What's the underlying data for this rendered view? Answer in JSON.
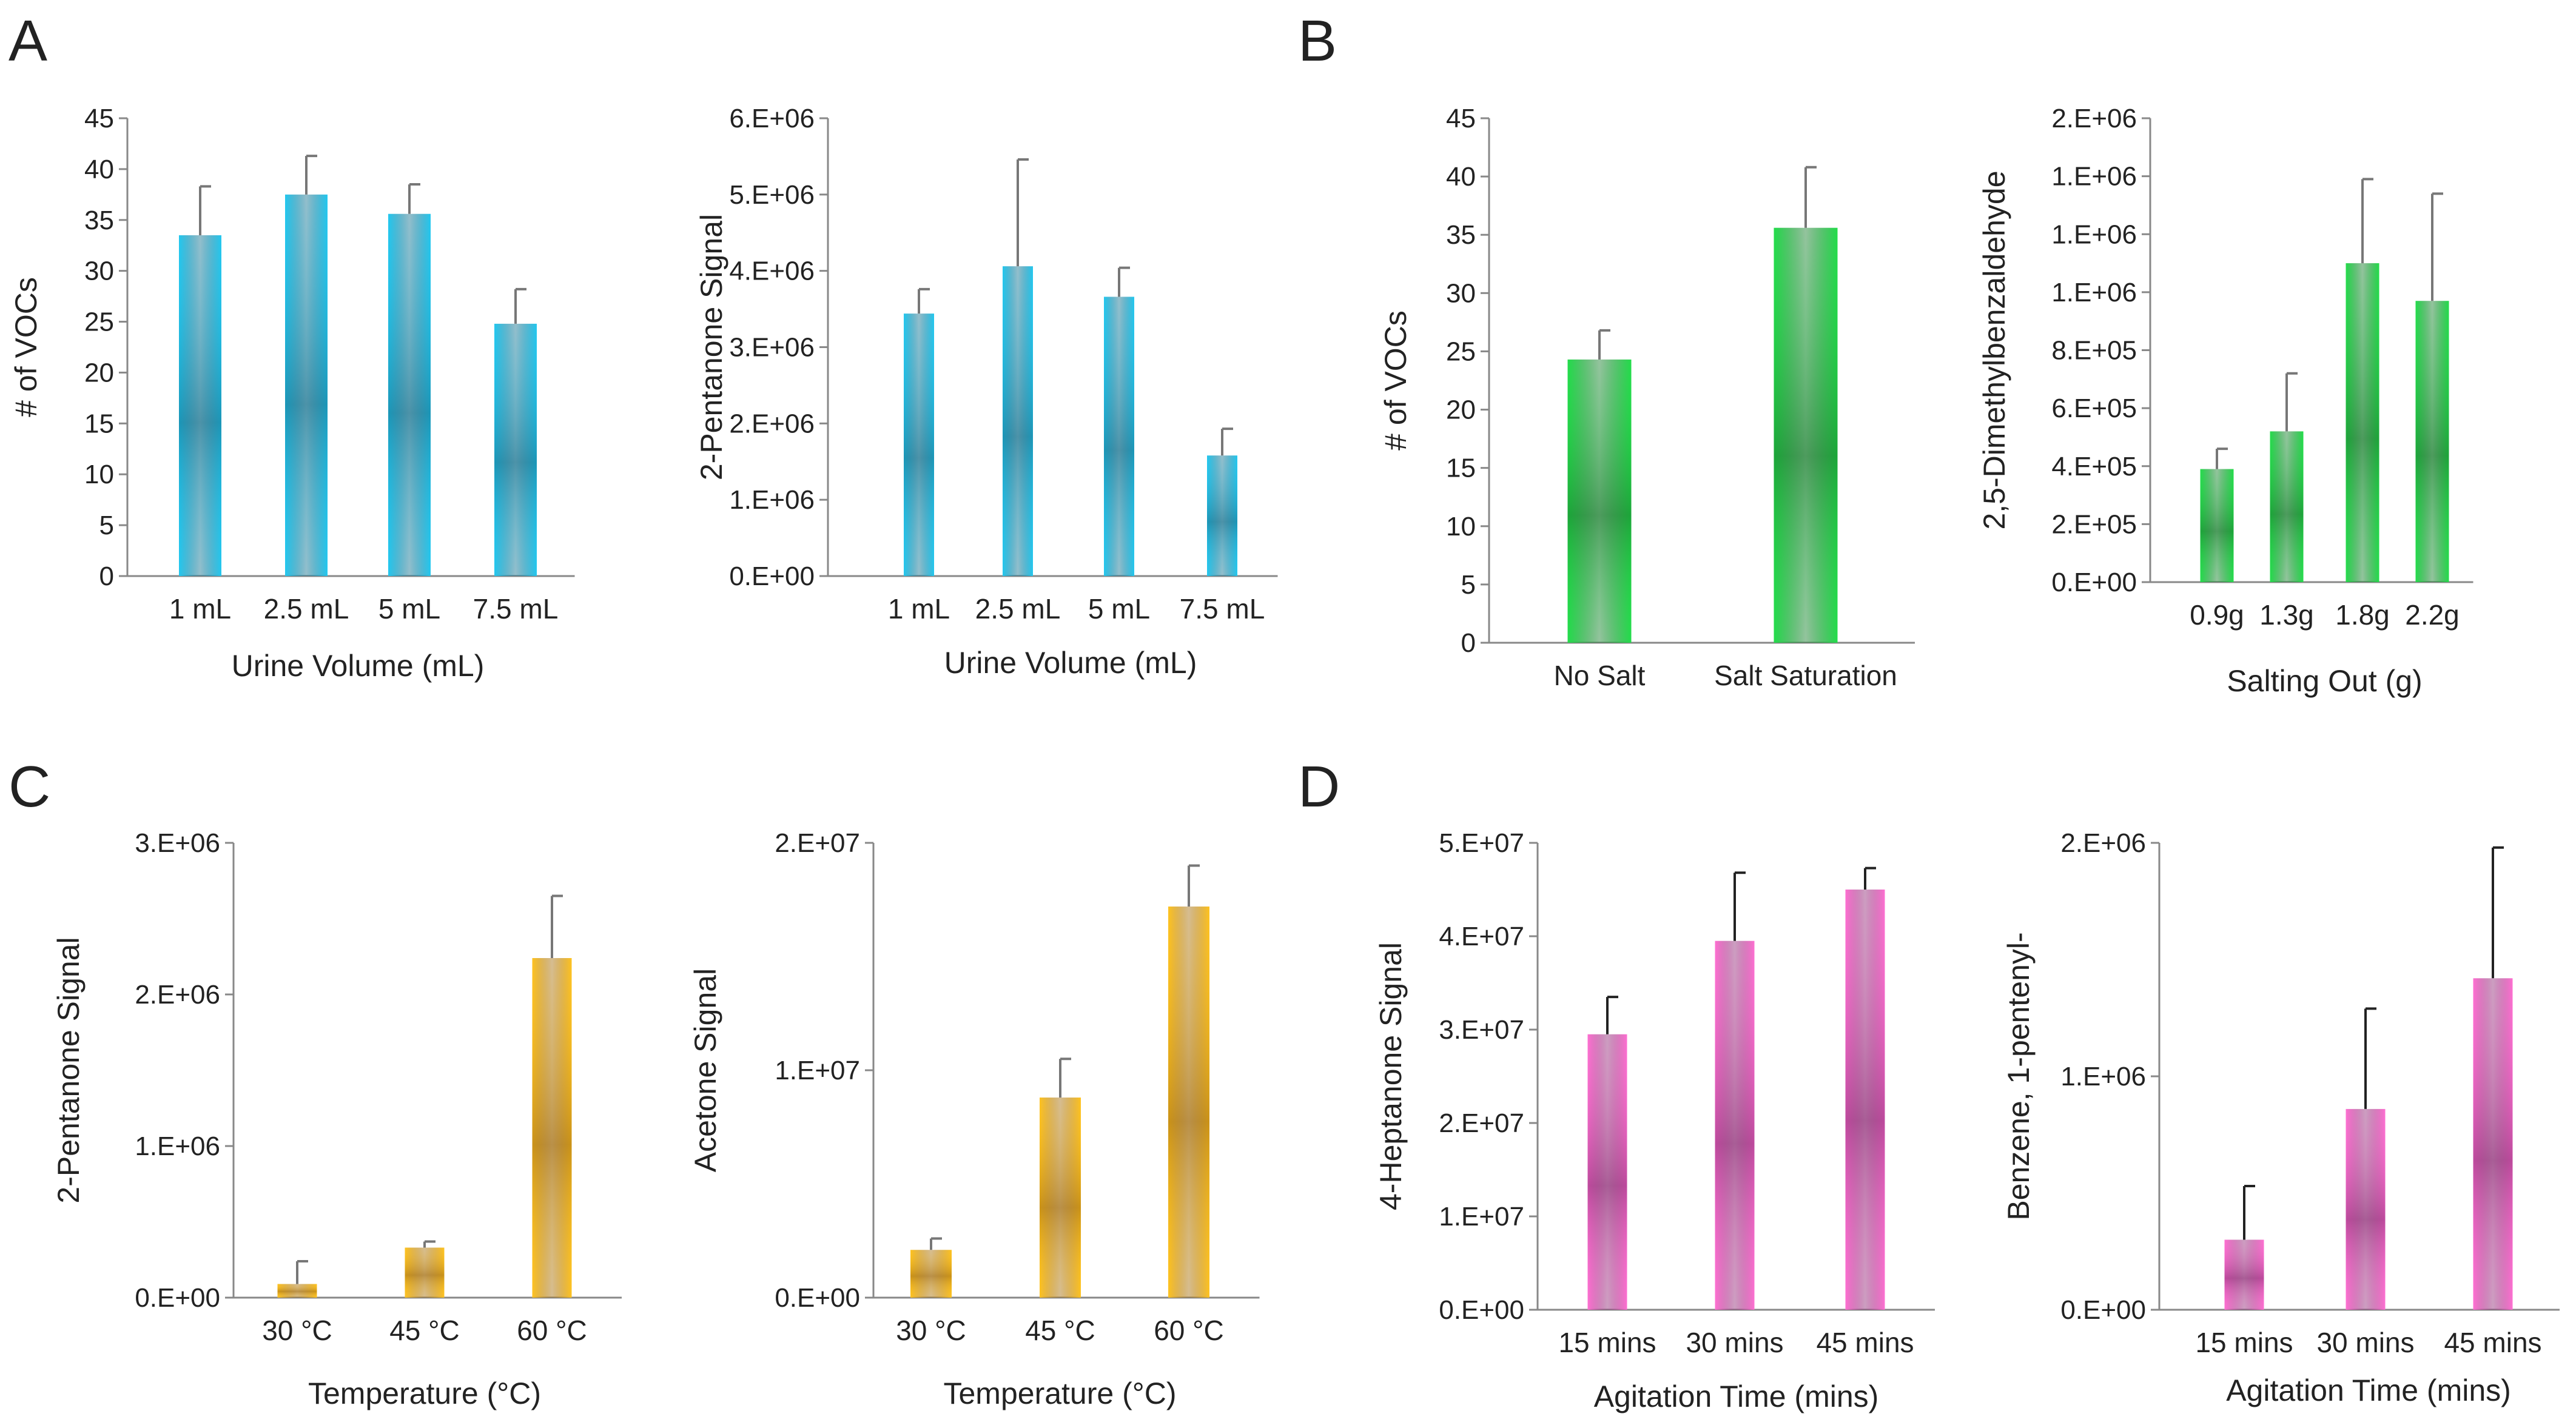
{
  "figure": {
    "panel_labels": [
      "A",
      "B",
      "C",
      "D"
    ]
  },
  "chart_data": [
    {
      "panel": "A",
      "type": "bar",
      "categories": [
        "1 mL",
        "2.5 mL",
        "5 mL",
        "7.5 mL"
      ],
      "values": [
        33.5,
        37.5,
        35.6,
        24.8
      ],
      "errors": [
        4.8,
        3.8,
        2.9,
        3.4
      ],
      "yticks": [
        "0",
        "5",
        "10",
        "15",
        "20",
        "25",
        "30",
        "35",
        "40",
        "45"
      ],
      "ylim": [
        0,
        45
      ],
      "ylabel": "# of VOCs",
      "xlabel": "Urine Volume (mL)",
      "title": "",
      "colors": {
        "edge": "#22c8f0",
        "core": "#136f8c",
        "error": "#777777"
      }
    },
    {
      "panel": "A",
      "type": "bar",
      "categories": [
        "1 mL",
        "2.5 mL",
        "5 mL",
        "7.5 mL"
      ],
      "values": [
        3440000,
        4060000,
        3660000,
        1580000
      ],
      "errors": [
        320000,
        1400000,
        380000,
        350000
      ],
      "yticks": [
        "0.E+00",
        "1.E+06",
        "2.E+06",
        "3.E+06",
        "4.E+06",
        "5.E+06",
        "6.E+06"
      ],
      "ylim": [
        0,
        6000000
      ],
      "ylabel": "2-Pentanone Signal",
      "xlabel": "Urine Volume (mL)",
      "title": "",
      "colors": {
        "edge": "#22c8f0",
        "core": "#136f8c",
        "error": "#777777"
      }
    },
    {
      "panel": "B",
      "type": "bar",
      "categories": [
        "No Salt",
        "Salt Saturation"
      ],
      "values": [
        24.3,
        35.6
      ],
      "errors": [
        2.5,
        5.2
      ],
      "yticks": [
        "0",
        "5",
        "10",
        "15",
        "20",
        "25",
        "30",
        "35",
        "40",
        "45"
      ],
      "ylim": [
        0,
        45
      ],
      "ylabel": "# of VOCs",
      "xlabel": "",
      "title": "",
      "colors": {
        "edge": "#22dd4a",
        "core": "#147a29",
        "error": "#777777"
      }
    },
    {
      "panel": "B",
      "type": "bar",
      "categories": [
        "0.9g",
        "1.3g",
        "1.8g",
        "2.2g"
      ],
      "values": [
        390000,
        520000,
        1100000,
        970000
      ],
      "errors": [
        70000,
        200000,
        290000,
        370000
      ],
      "yticks": [
        "0.E+00",
        "2.E+05",
        "4.E+05",
        "6.E+05",
        "8.E+05",
        "1.E+06",
        "1.E+06",
        "1.E+06",
        "2.E+06"
      ],
      "ylim": [
        0,
        1600000
      ],
      "ylabel": "2,5-Dimethylbenzaldehyde",
      "xlabel": "Salting Out (g)",
      "title": "",
      "colors": {
        "edge": "#22dd4a",
        "core": "#147a29",
        "error": "#777777"
      }
    },
    {
      "panel": "C",
      "type": "bar",
      "categories": [
        "30 °C",
        "45 °C",
        "60 °C"
      ],
      "values": [
        90000,
        330000,
        2240000
      ],
      "errors": [
        150000,
        40000,
        410000
      ],
      "yticks": [
        "0.E+00",
        "1.E+06",
        "2.E+06",
        "3.E+06"
      ],
      "ylim": [
        0,
        3000000
      ],
      "ylabel": "2-Pentanone Signal",
      "xlabel": "Temperature (°C)",
      "title": "",
      "colors": {
        "edge": "#ffc31f",
        "core": "#a26c0e",
        "error": "#777777"
      }
    },
    {
      "panel": "C",
      "type": "bar",
      "categories": [
        "30 °C",
        "45 °C",
        "60 °C"
      ],
      "values": [
        2100000,
        8800000,
        17200000
      ],
      "errors": [
        500000,
        1700000,
        1800000
      ],
      "yticks": [
        "0.E+00",
        "1.E+07",
        "2.E+07"
      ],
      "ylim": [
        0,
        20000000
      ],
      "ylabel": "Acetone Signal",
      "xlabel": "Temperature (°C)",
      "title": "",
      "colors": {
        "edge": "#ffc31f",
        "core": "#a26c0e",
        "error": "#777777"
      }
    },
    {
      "panel": "D",
      "type": "bar",
      "categories": [
        "15 mins",
        "30 mins",
        "45 mins"
      ],
      "values": [
        29500000,
        39500000,
        45000000
      ],
      "errors": [
        4000000,
        7300000,
        2300000
      ],
      "yticks": [
        "0.E+00",
        "1.E+07",
        "2.E+07",
        "3.E+07",
        "4.E+07",
        "5.E+07"
      ],
      "ylim": [
        0,
        50000000
      ],
      "ylabel": "4-Heptanone Signal",
      "xlabel": "Agitation Time (mins)",
      "title": "",
      "colors": {
        "edge": "#ff6fd2",
        "core": "#8c2a74",
        "error": "#222222"
      }
    },
    {
      "panel": "D",
      "type": "bar",
      "categories": [
        "15 mins",
        "30 mins",
        "45 mins"
      ],
      "values": [
        300000,
        860000,
        1420000
      ],
      "errors": [
        230000,
        430000,
        560000
      ],
      "yticks": [
        "0.E+00",
        "1.E+06",
        "2.E+06"
      ],
      "ylim": [
        0,
        2000000
      ],
      "ylabel": "Benzene, 1-pentenyl-",
      "xlabel": "Agitation Time (mins)",
      "title": "",
      "colors": {
        "edge": "#ff6fd2",
        "core": "#8c2a74",
        "error": "#222222"
      }
    }
  ]
}
